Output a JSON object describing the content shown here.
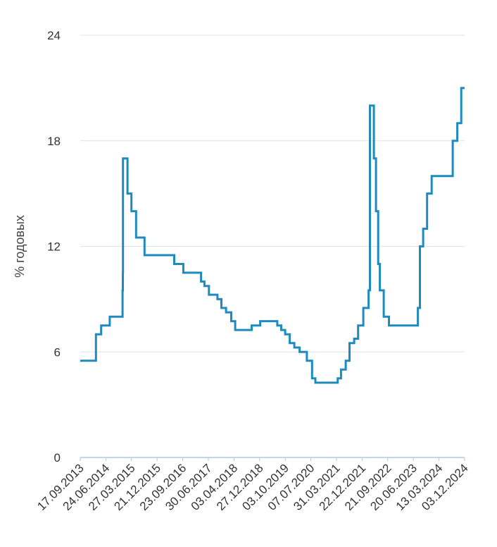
{
  "chart_data": {
    "type": "line",
    "step": true,
    "title": "",
    "xlabel": "",
    "ylabel": "% годовых",
    "ylim": [
      0,
      24
    ],
    "y_ticks": [
      0,
      6,
      12,
      18,
      24
    ],
    "x_tick_labels": [
      "17.09.2013",
      "24.06.2014",
      "27.03.2015",
      "21.12.2015",
      "23.09.2016",
      "30.06.2017",
      "03.04.2018",
      "27.12.2018",
      "03.10.2019",
      "07.07.2020",
      "31.03.2021",
      "22.12.2021",
      "21.09.2022",
      "20.06.2023",
      "13.03.2024",
      "03.12.2024"
    ],
    "x_range": [
      "17.09.2013",
      "03.12.2024"
    ],
    "grid": true,
    "legend": "none",
    "colors": {
      "line": "#1f8ac0",
      "grid": "#dde3e8",
      "baseline": "#a9cbe4"
    },
    "series": [
      {
        "name": "",
        "x": [
          "17.09.2013",
          "24.02.2014",
          "03.03.2014",
          "18.04.2014",
          "28.04.2014",
          "16.06.2014",
          "28.07.2014",
          "27.10.2014",
          "05.11.2014",
          "12.12.2014",
          "15.12.2014",
          "16.12.2014",
          "02.02.2015",
          "16.03.2015",
          "05.05.2015",
          "03.08.2015",
          "14.06.2016",
          "19.09.2016",
          "27.03.2017",
          "02.05.2017",
          "19.06.2017",
          "18.09.2017",
          "30.10.2017",
          "18.12.2017",
          "12.02.2018",
          "26.03.2018",
          "17.09.2018",
          "17.12.2018",
          "17.06.2019",
          "29.07.2019",
          "09.09.2019",
          "28.10.2019",
          "16.12.2019",
          "10.02.2020",
          "27.04.2020",
          "22.06.2020",
          "27.07.2020",
          "22.03.2021",
          "26.04.2021",
          "15.06.2021",
          "26.07.2021",
          "13.09.2021",
          "25.10.2021",
          "20.12.2021",
          "14.02.2022",
          "28.02.2022",
          "11.04.2022",
          "04.05.2022",
          "27.05.2022",
          "14.06.2022",
          "25.07.2022",
          "19.09.2022",
          "24.07.2023",
          "15.08.2023",
          "18.09.2023",
          "30.10.2023",
          "18.12.2023",
          "29.07.2024",
          "16.09.2024",
          "28.10.2024",
          "03.12.2024"
        ],
        "y": [
          5.5,
          5.5,
          7,
          7,
          7.5,
          7.5,
          8,
          8,
          8,
          9.5,
          10.5,
          17,
          15,
          14,
          12.5,
          11.5,
          11,
          10.5,
          10,
          9.75,
          9.25,
          9,
          8.5,
          8.25,
          7.75,
          7.25,
          7.5,
          7.75,
          7.5,
          7.25,
          7,
          6.5,
          6.25,
          6,
          5.5,
          4.5,
          4.25,
          4.5,
          5,
          5.5,
          6.5,
          6.75,
          7.5,
          8.5,
          9.5,
          20,
          17,
          14,
          11,
          9.5,
          8,
          7.5,
          8.5,
          12,
          13,
          15,
          16,
          18,
          19,
          21,
          21
        ]
      }
    ]
  }
}
